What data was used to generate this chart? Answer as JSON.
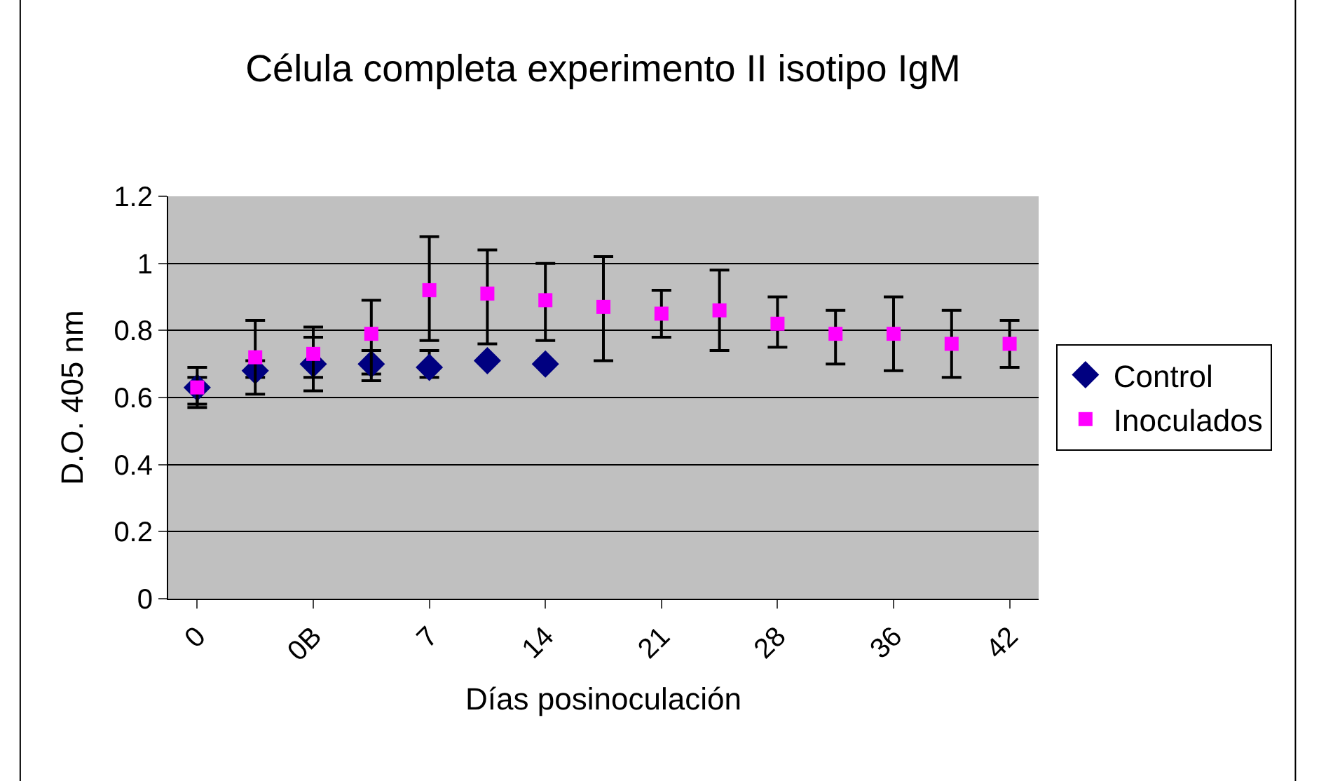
{
  "chart_data": {
    "type": "scatter",
    "title": "Célula completa experimento II isotipo IgM",
    "xlabel": "Días posinoculación",
    "ylabel": "D.O. 405 nm",
    "categories": [
      "0",
      null,
      "0B",
      null,
      "7",
      null,
      "14",
      null,
      "21",
      null,
      "28",
      null,
      "36",
      null,
      "42"
    ],
    "ylim": [
      0,
      1.2
    ],
    "yticks": [
      0,
      0.2,
      0.4,
      0.6,
      0.8,
      1,
      1.2
    ],
    "grid": "y",
    "legend": "right",
    "series": [
      {
        "name": "Control",
        "color": "#000080",
        "marker": "diamond",
        "values": [
          0.63,
          0.68,
          0.7,
          0.7,
          0.69,
          0.71,
          0.7,
          null,
          null,
          null,
          null,
          null,
          null,
          null,
          null
        ],
        "errors": [
          [
            0.58,
            0.66
          ],
          [
            0.66,
            0.71
          ],
          [
            0.66,
            0.78
          ],
          [
            0.67,
            0.74
          ],
          [
            0.66,
            0.74
          ],
          null,
          null,
          null,
          null,
          null,
          null,
          null,
          null,
          null,
          null
        ]
      },
      {
        "name": "Inoculados",
        "color": "#ff00ff",
        "marker": "square",
        "values": [
          0.63,
          0.72,
          0.73,
          0.79,
          0.92,
          0.91,
          0.89,
          0.87,
          0.85,
          0.86,
          0.82,
          0.79,
          0.79,
          0.76,
          0.76
        ],
        "errors": [
          [
            0.57,
            0.69
          ],
          [
            0.61,
            0.83
          ],
          [
            0.62,
            0.81
          ],
          [
            0.65,
            0.89
          ],
          [
            0.77,
            1.08
          ],
          [
            0.76,
            1.04
          ],
          [
            0.77,
            1.0
          ],
          [
            0.71,
            1.02
          ],
          [
            0.78,
            0.92
          ],
          [
            0.74,
            0.98
          ],
          [
            0.75,
            0.9
          ],
          [
            0.7,
            0.86
          ],
          [
            0.68,
            0.9
          ],
          [
            0.66,
            0.86
          ],
          [
            0.69,
            0.83
          ]
        ]
      }
    ]
  }
}
